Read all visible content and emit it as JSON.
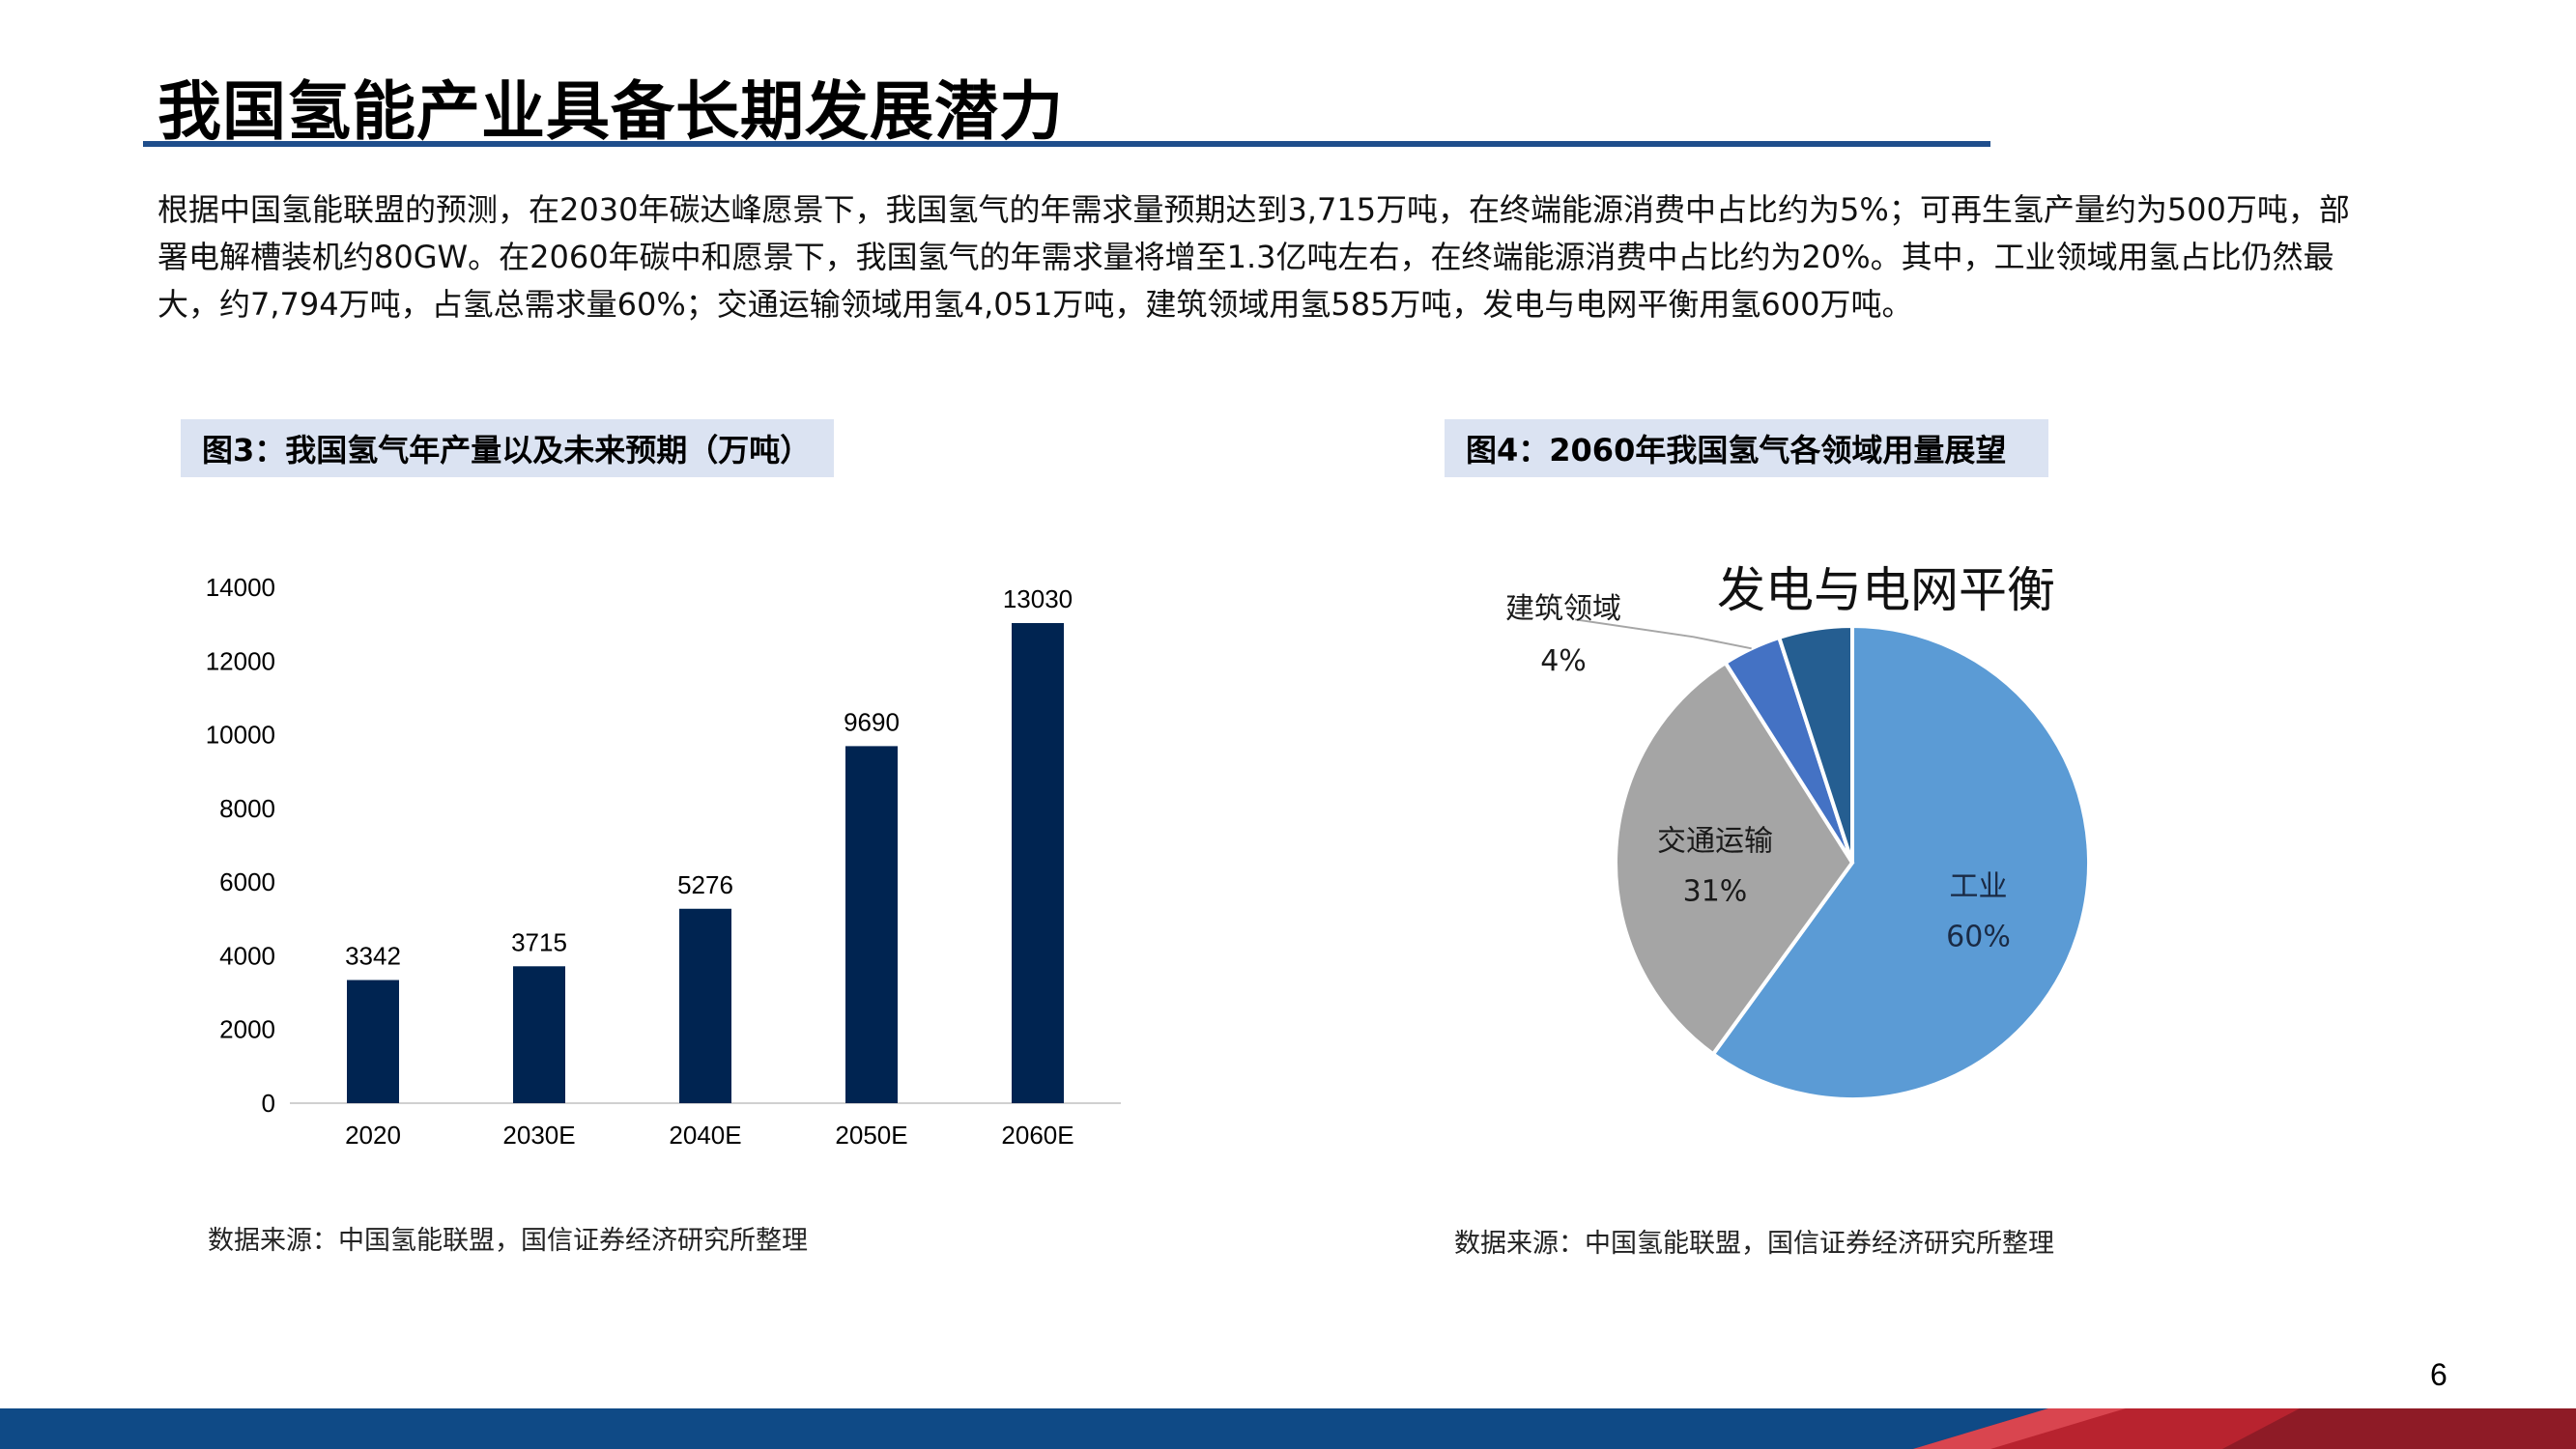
{
  "slide": {
    "title": "我国氢能产业具备长期发展潜力",
    "intro_lines": [
      "根据中国氢能联盟的预测，在2030年碳达峰愿景下，我国氢气的年需求量预期达到3,715万吨，在终端能源消费中占比约为5%；可再生氢产量约为500万吨，部",
      "署电解槽装机约80GW。在2060年碳中和愿景下，我国氢气的年需求量将增至1.3亿吨左右，在终端能源消费中占比约为20%。其中，工业领域用氢占比仍然最",
      "大，约7,794万吨，占氢总需求量60%；交通运输领域用氢4,051万吨，建筑领域用氢585万吨，发电与电网平衡用氢600万吨。"
    ],
    "page_number": "6"
  },
  "figures": {
    "fig3": {
      "label": "图3：我国氢气年产量以及未来预期（万吨）",
      "source": "数据来源：中国氢能联盟，国信证券经济研究所整理"
    },
    "fig4": {
      "label": "图4：2060年我国氢气各领域用量展望",
      "source": "数据来源：中国氢能联盟，国信证券经济研究所整理"
    }
  },
  "colors": {
    "bar": "#002451",
    "title_rule": "#1f4e8c",
    "label_bg": "#dbe3f2",
    "pie_industry": "#5b9bd5",
    "pie_transport": "#a5a5a5",
    "pie_building": "#4472c4",
    "pie_power": "#255e91",
    "footer_blue": "#0f4a86",
    "footer_red": "#c0392b"
  },
  "chart_data": [
    {
      "type": "bar",
      "categories": [
        "2020",
        "2030E",
        "2040E",
        "2050E",
        "2060E"
      ],
      "values": [
        3342,
        3715,
        5276,
        9690,
        13030
      ],
      "data_labels": [
        "3342",
        "3715",
        "5276",
        "9690",
        "13030"
      ],
      "ylim": [
        0,
        14000
      ],
      "yticks": [
        "0",
        "2000",
        "4000",
        "6000",
        "8000",
        "10000",
        "12000",
        "14000"
      ],
      "grid": false,
      "legend": "none"
    },
    {
      "type": "pie",
      "slices": [
        {
          "name": "工业",
          "value": 60,
          "label": "60%"
        },
        {
          "name": "交通运输",
          "value": 31,
          "label": "31%"
        },
        {
          "name": "建筑领域",
          "value": 4,
          "label": "4%"
        },
        {
          "name": "发电与电网平衡",
          "value": 5,
          "label": ""
        }
      ],
      "legend": "none"
    }
  ]
}
